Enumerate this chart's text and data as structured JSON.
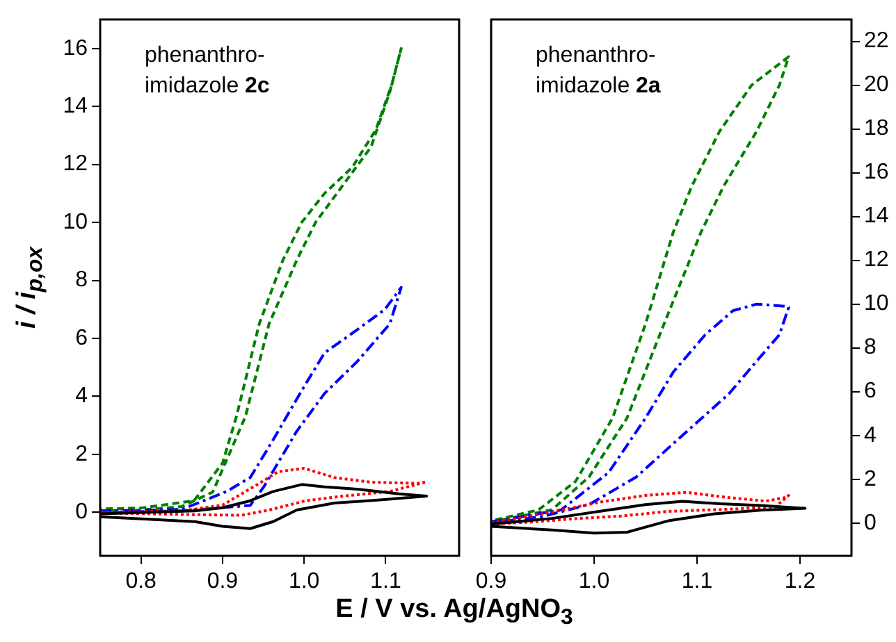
{
  "chart_data": [
    {
      "type": "line",
      "ylabel": "i / i$_{p,ox}$",
      "xlabel": "E / V vs. Ag/AgNO$_{3}$",
      "annotations": [
        "phenanthro-\nimidazole 2c"
      ],
      "xlim": [
        0.75,
        1.19
      ],
      "xticks": [
        0.8,
        0.9,
        {
          "value": 1,
          "label": "1.0"
        },
        1.1
      ],
      "ylim": [
        -1.5,
        17
      ],
      "yticks": [
        0,
        2,
        4,
        6,
        8,
        10,
        12,
        14,
        16
      ],
      "series": [
        {
          "color": "#000000",
          "line_style": "solid",
          "x": [
            0.75,
            0.866,
            0.9,
            0.934,
            0.962,
            0.991,
            1.037,
            1.093,
            1.15,
            1.116,
            1.065,
            1.025,
            0.997,
            0.962,
            0.934,
            0.9,
            0.866,
            0.75
          ],
          "values": [
            -0.15,
            -0.32,
            -0.48,
            -0.56,
            -0.32,
            0.08,
            0.32,
            0.43,
            0.56,
            0.64,
            0.8,
            0.88,
            0.96,
            0.72,
            0.4,
            0.16,
            0.05,
            -0.05
          ]
        },
        {
          "color": "#ff0000",
          "line_style": "dotted",
          "x": [
            0.75,
            0.85,
            0.9,
            0.945,
            0.968,
            1.0,
            1.037,
            1.082,
            1.139,
            1.15,
            1.105,
            1.048,
            1.002,
            0.957,
            0.923,
            0.865,
            0.75
          ],
          "values": [
            0,
            0.05,
            0.25,
            1.0,
            1.4,
            1.52,
            1.2,
            1.04,
            1.0,
            1.05,
            0.72,
            0.56,
            0.4,
            0.08,
            -0.1,
            -0.08,
            -0.02
          ]
        },
        {
          "color": "#0000ff",
          "line_style": "dashdot",
          "x": [
            0.75,
            0.85,
            0.905,
            0.934,
            0.962,
            0.997,
            1.025,
            1.065,
            1.099,
            1.119,
            1.105,
            1.065,
            1.025,
            0.991,
            0.951,
            0.934,
            0.85,
            0.75
          ],
          "values": [
            0.05,
            0.1,
            0.72,
            1.2,
            2.5,
            4.2,
            5.5,
            6.3,
            7,
            7.76,
            6.5,
            5.2,
            4.1,
            2.8,
            0.9,
            0.24,
            0.05,
            0
          ]
        },
        {
          "color": "#008000",
          "line_style": "dashed",
          "x": [
            0.75,
            0.8,
            0.85,
            0.888,
            0.928,
            0.957,
            0.991,
            1.014,
            1.048,
            1.082,
            1.105,
            1.119,
            1.108,
            1.088,
            1.059,
            1.025,
            0.997,
            0.974,
            0.945,
            0.917,
            0.9,
            0.865,
            0.8,
            0.75
          ],
          "values": [
            0.05,
            0.08,
            0.2,
            0.7,
            3.3,
            6.5,
            8.7,
            10,
            11.3,
            12.6,
            14.5,
            16,
            14.8,
            13.2,
            11.9,
            11,
            10,
            8.7,
            6.5,
            3.3,
            1.7,
            0.4,
            0.15,
            0.12
          ]
        }
      ]
    },
    {
      "type": "line",
      "annotations": [
        "phenanthro-\nimidazole 2a"
      ],
      "xlim": [
        0.9,
        1.25
      ],
      "xticks": [
        0.9,
        {
          "value": 1,
          "label": "1.0"
        },
        1.1,
        1.2
      ],
      "y2lim": [
        -1.5,
        23
      ],
      "y2ticks": [
        0,
        2,
        4,
        6,
        8,
        10,
        12,
        14,
        16,
        18,
        20,
        22
      ],
      "series": [
        {
          "axis": "y2",
          "color": "#000000",
          "line_style": "solid",
          "x": [
            0.9,
            0.959,
            1.0,
            1.032,
            1.072,
            1.117,
            1.162,
            1.205,
            1.162,
            1.122,
            1.086,
            1.05,
            1.005,
            0.959,
            0.9
          ],
          "values": [
            -0.15,
            -0.32,
            -0.46,
            -0.42,
            0.1,
            0.42,
            0.59,
            0.67,
            0.8,
            0.88,
            0.99,
            0.84,
            0.53,
            0.21,
            -0.05
          ]
        },
        {
          "axis": "y2",
          "color": "#ff0000",
          "line_style": "dotted",
          "x": [
            0.9,
            0.959,
            1.005,
            1.05,
            1.09,
            1.131,
            1.167,
            1.185,
            1.189,
            1.176,
            1.131,
            1.072,
            1.027,
            0.982,
            0.937,
            0.9
          ],
          "values": [
            0,
            0.5,
            0.95,
            1.26,
            1.4,
            1.16,
            1.0,
            1.16,
            1.26,
            0.74,
            0.63,
            0.53,
            0.32,
            0.2,
            0.04,
            -0.05
          ]
        },
        {
          "axis": "y2",
          "color": "#0000ff",
          "line_style": "dashdot",
          "x": [
            0.9,
            0.968,
            1.014,
            1.05,
            1.077,
            1.108,
            1.135,
            1.158,
            1.185,
            1.189,
            1.18,
            1.158,
            1.131,
            1.081,
            1.041,
            0.995,
            0.95,
            0.9
          ],
          "values": [
            0.05,
            0.6,
            2.3,
            4.8,
            6.9,
            8.6,
            9.7,
            10,
            9.9,
            9.85,
            8.6,
            7.4,
            5.9,
            3.8,
            2.1,
            0.84,
            0.3,
            0
          ]
        },
        {
          "axis": "y2",
          "color": "#008000",
          "line_style": "dashed",
          "x": [
            0.9,
            0.959,
            0.995,
            1.032,
            1.068,
            1.104,
            1.126,
            1.158,
            1.18,
            1.189,
            1.153,
            1.122,
            1.095,
            1.077,
            1.05,
            1.018,
            0.982,
            0.946,
            0.9
          ],
          "values": [
            0.05,
            0.6,
            2.1,
            4.8,
            9.1,
            13.3,
            15.4,
            17.9,
            20,
            21.3,
            20,
            17.9,
            15.4,
            13.3,
            9.1,
            4.8,
            1.9,
            0.6,
            0.1
          ]
        }
      ]
    }
  ]
}
